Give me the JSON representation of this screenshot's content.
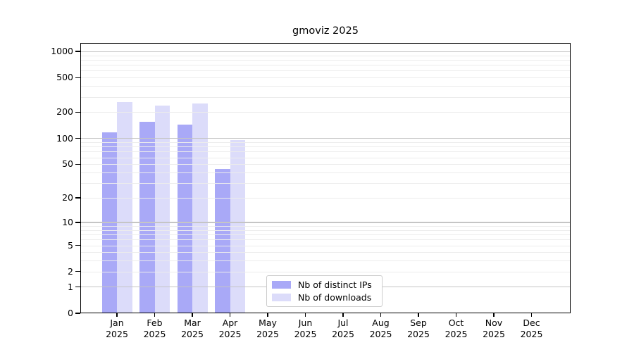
{
  "chart_data": {
    "type": "bar",
    "title": "gmoviz 2025",
    "categories": [
      "Jan 2025",
      "Feb 2025",
      "Mar 2025",
      "Apr 2025",
      "May 2025",
      "Jun 2025",
      "Jul 2025",
      "Aug 2025",
      "Sep 2025",
      "Oct 2025",
      "Nov 2025",
      "Dec 2025"
    ],
    "series": [
      {
        "name": "Nb of distinct IPs",
        "color": "#a9a9f7",
        "values": [
          117,
          154,
          145,
          44,
          0,
          0,
          0,
          0,
          0,
          0,
          0,
          0
        ]
      },
      {
        "name": "Nb of downloads",
        "color": "#dcdcfa",
        "values": [
          262,
          240,
          251,
          95,
          0,
          0,
          0,
          0,
          0,
          0,
          0,
          0
        ]
      }
    ],
    "yscale": "log1p",
    "yticks": [
      0,
      1,
      2,
      5,
      10,
      20,
      50,
      100,
      200,
      500,
      1000
    ],
    "ylim": [
      0,
      1250
    ],
    "xlabel": "",
    "ylabel": "",
    "grid": {
      "horizontal": true,
      "major_at": [
        1,
        10,
        100,
        1000
      ],
      "minor_at": "2-9 per decade",
      "drawn_above_bars": true
    },
    "legend": {
      "position": "bottom-center",
      "border_color": "#cccccc"
    },
    "style": {
      "grid_major_color": "#c5c5c5",
      "grid_minor_color": "#ececec",
      "axis_color": "#000000",
      "text_color": "#000000",
      "background": "#ffffff"
    }
  }
}
